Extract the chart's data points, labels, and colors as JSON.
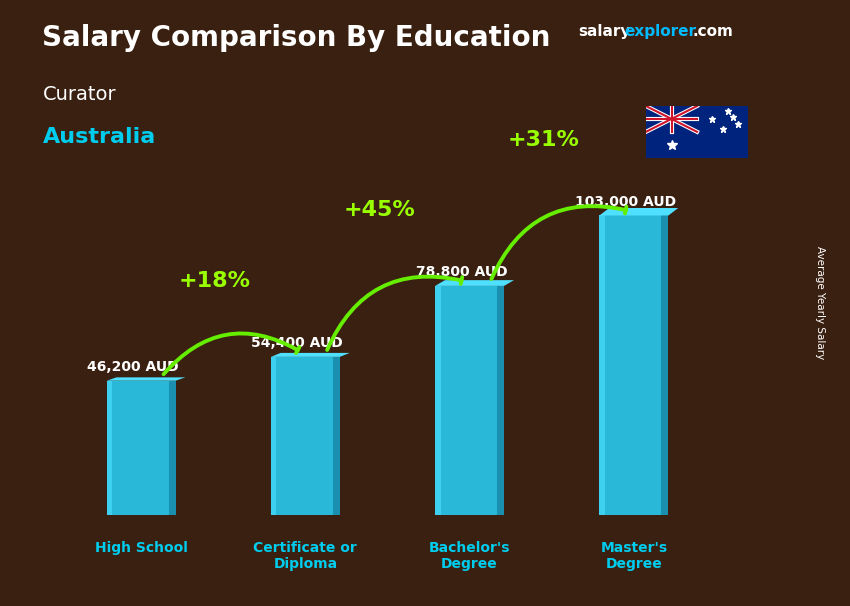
{
  "title": "Salary Comparison By Education",
  "subtitle1": "Curator",
  "subtitle2": "Australia",
  "ylabel": "Average Yearly Salary",
  "categories": [
    "High School",
    "Certificate or\nDiploma",
    "Bachelor's\nDegree",
    "Master's\nDegree"
  ],
  "values": [
    46200,
    54400,
    78800,
    103000
  ],
  "value_labels": [
    "46,200 AUD",
    "54,400 AUD",
    "78,800 AUD",
    "103,000 AUD"
  ],
  "pct_labels": [
    "+18%",
    "+45%",
    "+31%"
  ],
  "bar_color_face": "#29b8d8",
  "bar_color_left": "#3dd0f0",
  "bar_color_right": "#1a8fb0",
  "bar_color_top_face": "#50e0ff",
  "background_color": "#3a2010",
  "title_color": "#ffffff",
  "subtitle1_color": "#ffffff",
  "subtitle2_color": "#00ccee",
  "value_label_color": "#ffffff",
  "pct_color": "#99ff00",
  "arrow_color": "#66ee00",
  "xlabel_color": "#00ccee",
  "ylabel_color": "#ffffff",
  "brand_color_salary": "#ffffff",
  "brand_color_explorer": "#00bbff",
  "brand_color_com": "#ffffff",
  "ylim": [
    0,
    125000
  ],
  "bar_width": 0.42,
  "x_positions": [
    0,
    1,
    2,
    3
  ],
  "xlim": [
    -0.6,
    3.85
  ],
  "pct_fontsize": 16,
  "value_fontsize": 10,
  "cat_fontsize": 10,
  "title_fontsize": 20,
  "sub1_fontsize": 14,
  "sub2_fontsize": 16
}
